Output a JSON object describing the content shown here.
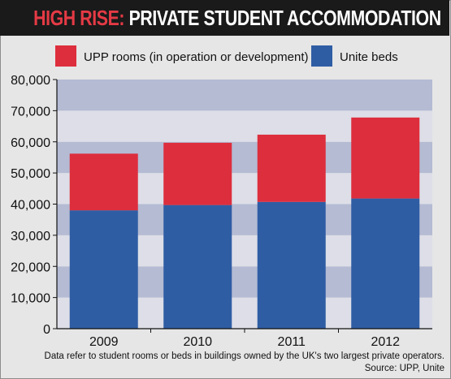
{
  "title": {
    "highlight": "HIGH RISE:",
    "main": " PRIVATE STUDENT ACCOMMODATION"
  },
  "colors": {
    "upp": "#dd2e3d",
    "unite": "#2f5da4",
    "band_dark": "#b4bbd3",
    "band_light": "#dddee7"
  },
  "chart_data": {
    "type": "bar",
    "stacked": true,
    "categories": [
      "2009",
      "2010",
      "2011",
      "2012"
    ],
    "series": [
      {
        "name": "Unite beds",
        "values": [
          38000,
          39700,
          40700,
          41800
        ]
      },
      {
        "name": "UPP rooms (in operation or development)",
        "values": [
          18200,
          20000,
          21600,
          26000
        ]
      }
    ],
    "ylim": [
      0,
      80000
    ],
    "yticks": [
      "0",
      "10,000",
      "20,000",
      "30,000",
      "40,000",
      "50,000",
      "60,000",
      "70,000",
      "80,000"
    ],
    "legend_position": "top",
    "grid": "alternating horizontal bands"
  },
  "footnote": "Data refer to student rooms or beds in buildings owned by the UK's two largest private operators.",
  "source": "Source: UPP, Unite"
}
